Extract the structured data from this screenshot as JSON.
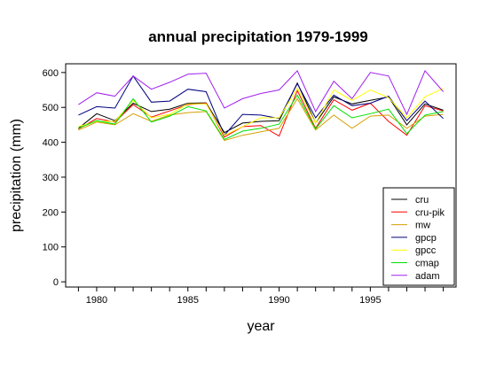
{
  "chart_data": {
    "type": "line",
    "title": "annual precipitation 1979-1999",
    "xlabel": "year",
    "ylabel": "precipitation (mm)",
    "x": [
      1979,
      1980,
      1981,
      1982,
      1983,
      1984,
      1985,
      1986,
      1987,
      1988,
      1989,
      1990,
      1991,
      1992,
      1993,
      1994,
      1995,
      1996,
      1997,
      1998,
      1999
    ],
    "xlim": [
      1978.3,
      1999.7
    ],
    "ylim": [
      -15,
      625
    ],
    "xticks": [
      1980,
      1985,
      1990,
      1995
    ],
    "yticks": [
      0,
      100,
      200,
      300,
      400,
      500,
      600
    ],
    "grid": false,
    "legend_position": "bottom-right",
    "series": [
      {
        "name": "cru",
        "color": "#000000",
        "values": [
          440,
          482,
          462,
          512,
          488,
          495,
          512,
          513,
          428,
          455,
          460,
          462,
          570,
          455,
          530,
          510,
          520,
          530,
          450,
          510,
          492
        ]
      },
      {
        "name": "cru-pik",
        "color": "#ff0000",
        "values": [
          438,
          468,
          458,
          508,
          472,
          490,
          508,
          512,
          415,
          445,
          448,
          418,
          548,
          440,
          522,
          492,
          512,
          460,
          420,
          505,
          490
        ]
      },
      {
        "name": "mw",
        "color": "#d4a000",
        "values": [
          435,
          458,
          450,
          482,
          460,
          478,
          485,
          488,
          405,
          420,
          430,
          440,
          525,
          435,
          478,
          440,
          475,
          478,
          440,
          475,
          480
        ]
      },
      {
        "name": "gpcp",
        "color": "#000080",
        "values": [
          478,
          502,
          498,
          590,
          515,
          518,
          552,
          545,
          420,
          480,
          478,
          468,
          568,
          470,
          535,
          505,
          512,
          532,
          462,
          518,
          468
        ]
      },
      {
        "name": "gpcc",
        "color": "#ffff00",
        "values": [
          445,
          460,
          460,
          520,
          470,
          480,
          510,
          510,
          420,
          445,
          470,
          470,
          555,
          455,
          550,
          520,
          550,
          528,
          470,
          530,
          555
        ]
      },
      {
        "name": "cmap",
        "color": "#00e000",
        "values": [
          440,
          462,
          452,
          525,
          458,
          475,
          502,
          490,
          408,
          432,
          440,
          452,
          535,
          438,
          505,
          470,
          482,
          495,
          425,
          478,
          488
        ]
      },
      {
        "name": "adam",
        "color": "#a020f0",
        "values": [
          508,
          542,
          532,
          590,
          552,
          572,
          595,
          598,
          498,
          525,
          540,
          550,
          605,
          488,
          575,
          525,
          600,
          590,
          480,
          605,
          545
        ]
      }
    ]
  }
}
